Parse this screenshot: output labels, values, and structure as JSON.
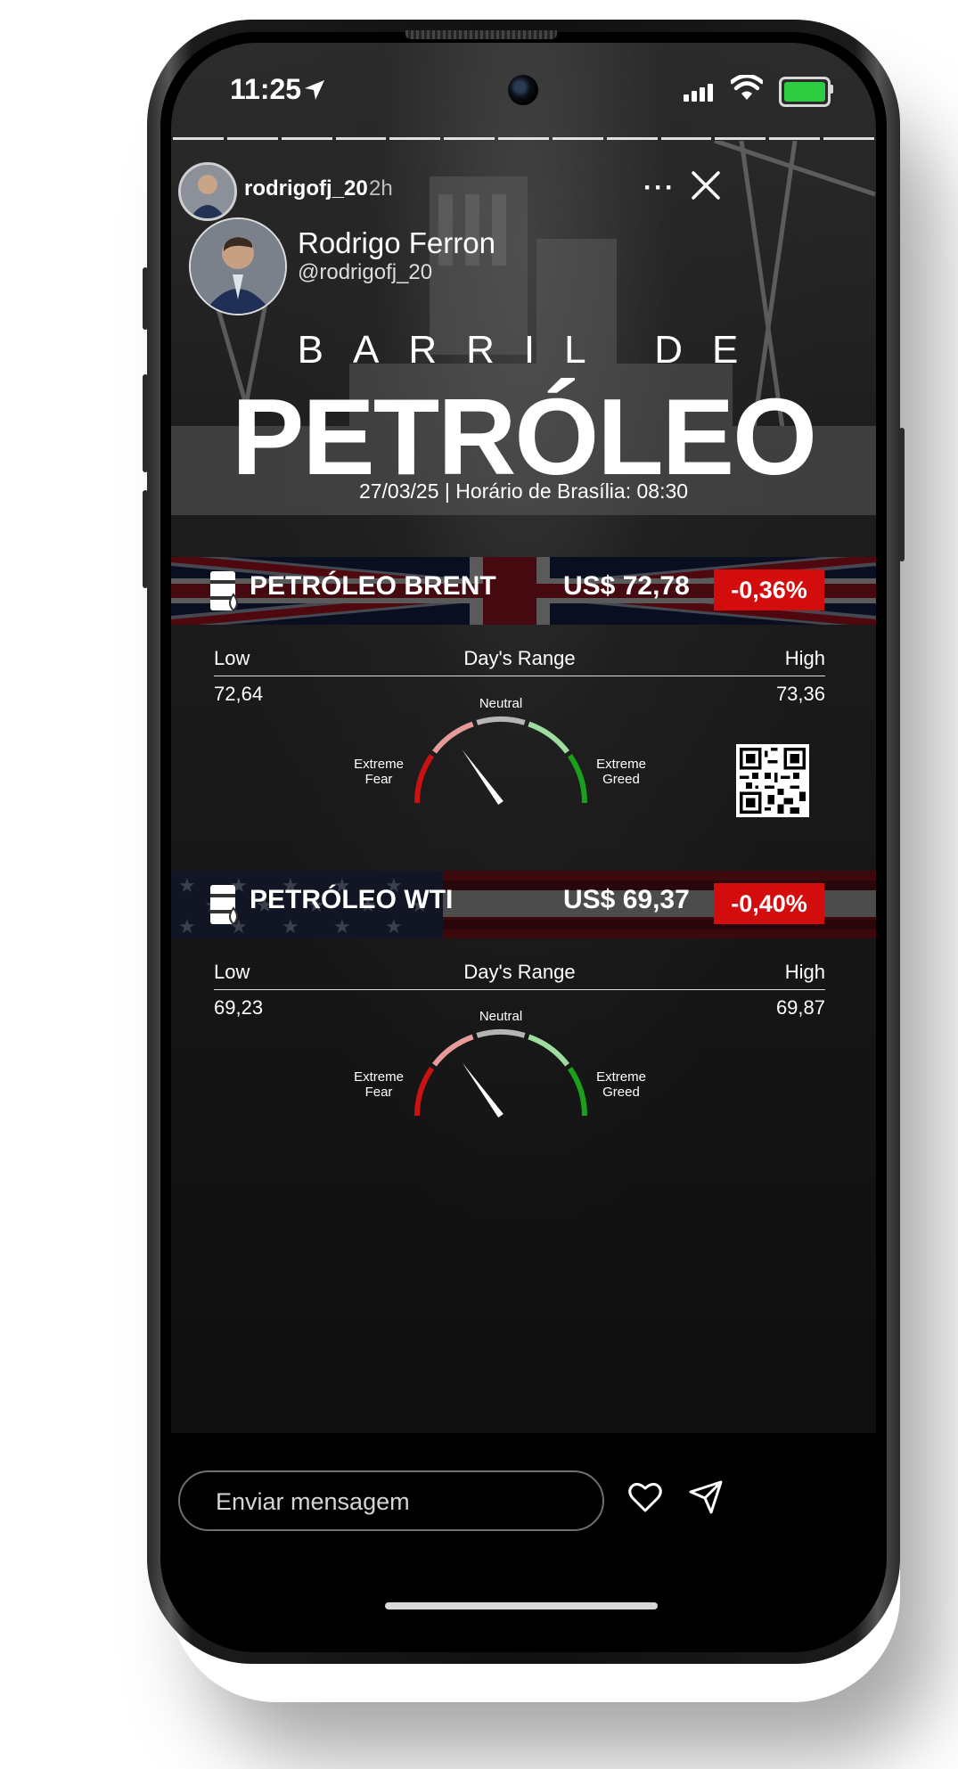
{
  "status_bar": {
    "time": "11:25",
    "battery_color": "#2ecc40"
  },
  "story": {
    "username": "rodrigofj_20",
    "posted": "2h",
    "more_icon": "more-horizontal-icon",
    "close_icon": "close-icon",
    "progress_segments": 13
  },
  "author": {
    "name": "Rodrigo Ferron",
    "handle": "@rodrigofj_20"
  },
  "title": {
    "sub": "BARRIL DE",
    "main": "PETRÓLEO",
    "date_line": "27/03/25 | Horário de Brasília: 08:30"
  },
  "brent": {
    "label": "PETRÓLEO BRENT",
    "price": "US$ 72,78",
    "change": "-0,36%",
    "range_low_label": "Low",
    "range_mid_label": "Day's Range",
    "range_high_label": "High",
    "low": "72,64",
    "high": "73,36",
    "gauge": {
      "neutral": "Neutral",
      "fear": "Extreme\nFear",
      "greed": "Extreme\nGreed",
      "level": 0.3
    }
  },
  "wti": {
    "label": "PETRÓLEO WTI",
    "price": "US$ 69,37",
    "change": "-0,40%",
    "range_low_label": "Low",
    "range_mid_label": "Day's Range",
    "range_high_label": "High",
    "low": "69,23",
    "high": "69,87",
    "gauge": {
      "neutral": "Neutral",
      "fear": "Extreme\nFear",
      "greed": "Extreme\nGreed",
      "level": 0.3
    }
  },
  "reply": {
    "placeholder": "Enviar mensagem",
    "like_icon": "heart-icon",
    "send_icon": "send-icon"
  },
  "colors": {
    "change_badge": "#d30d0d",
    "gauge_fear": "#cc1111",
    "gauge_greed": "#1aa01a",
    "gauge_neutral": "#b5b5b5"
  }
}
